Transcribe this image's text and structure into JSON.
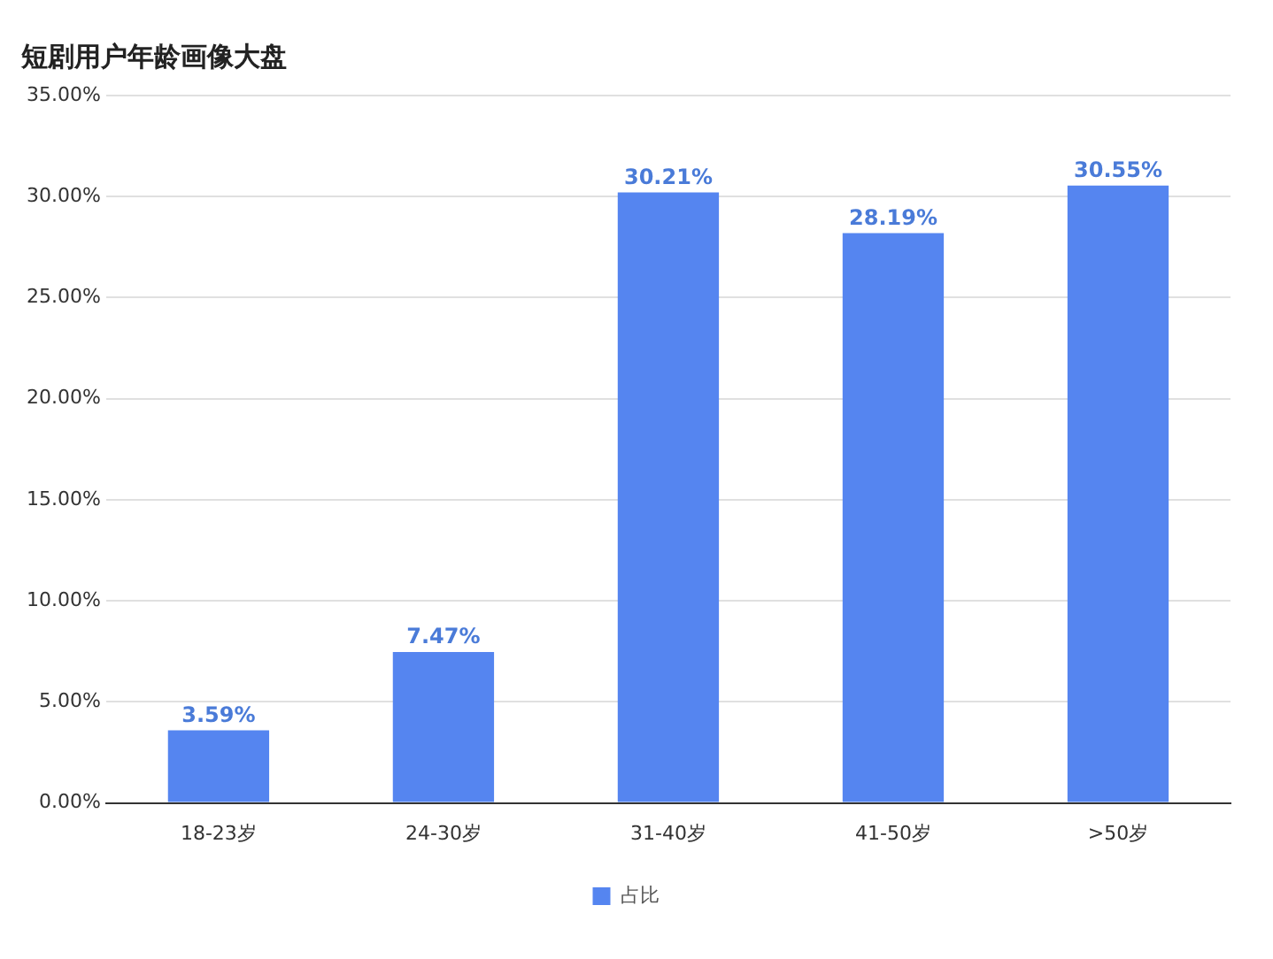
{
  "chart_data": {
    "type": "bar",
    "title": "短剧用户年龄画像大盘",
    "categories": [
      "18-23岁",
      "24-30岁",
      "31-40岁",
      "41-50岁",
      ">50岁"
    ],
    "series": [
      {
        "name": "占比",
        "color": "#5585f0",
        "values": [
          3.59,
          7.47,
          30.21,
          28.19,
          30.55
        ],
        "value_labels": [
          "3.59%",
          "7.47%",
          "30.21%",
          "28.19%",
          "30.55%"
        ]
      }
    ],
    "ylim": [
      0,
      35
    ],
    "yticks": [
      {
        "value": 0,
        "label": "0.00%"
      },
      {
        "value": 5,
        "label": "5.00%"
      },
      {
        "value": 10,
        "label": "10.00%"
      },
      {
        "value": 15,
        "label": "15.00%"
      },
      {
        "value": 20,
        "label": "20.00%"
      },
      {
        "value": 25,
        "label": "25.00%"
      },
      {
        "value": 30,
        "label": "30.00%"
      },
      {
        "value": 35,
        "label": "35.00%"
      }
    ],
    "grid": "y",
    "legend": "bottom"
  }
}
